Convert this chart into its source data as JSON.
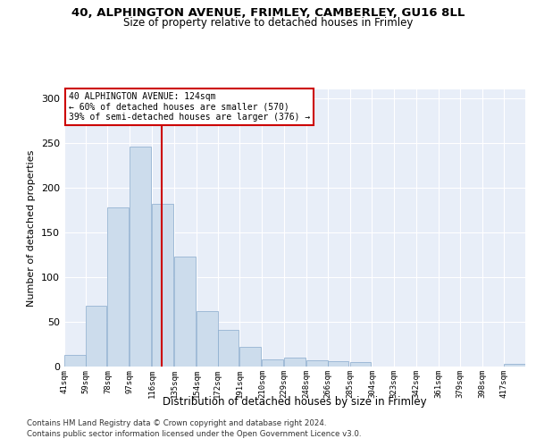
{
  "title1": "40, ALPHINGTON AVENUE, FRIMLEY, CAMBERLEY, GU16 8LL",
  "title2": "Size of property relative to detached houses in Frimley",
  "xlabel": "Distribution of detached houses by size in Frimley",
  "ylabel": "Number of detached properties",
  "bar_color": "#ccdcec",
  "bar_edge_color": "#88aacc",
  "bin_labels": [
    "41sqm",
    "59sqm",
    "78sqm",
    "97sqm",
    "116sqm",
    "135sqm",
    "154sqm",
    "172sqm",
    "191sqm",
    "210sqm",
    "229sqm",
    "248sqm",
    "266sqm",
    "285sqm",
    "304sqm",
    "323sqm",
    "342sqm",
    "361sqm",
    "379sqm",
    "398sqm",
    "417sqm"
  ],
  "bar_heights": [
    13,
    68,
    178,
    246,
    182,
    123,
    62,
    41,
    22,
    8,
    10,
    7,
    6,
    5,
    0,
    0,
    0,
    0,
    0,
    0,
    3
  ],
  "property_label": "40 ALPHINGTON AVENUE: 124sqm",
  "smaller_pct": "60%",
  "smaller_count": 570,
  "larger_pct": "39%",
  "larger_count": 376,
  "vline_color": "#cc0000",
  "annotation_box_color": "#cc0000",
  "ylim": [
    0,
    310
  ],
  "footnote1": "Contains HM Land Registry data © Crown copyright and database right 2024.",
  "footnote2": "Contains public sector information licensed under the Open Government Licence v3.0.",
  "background_color": "#e8eef8"
}
